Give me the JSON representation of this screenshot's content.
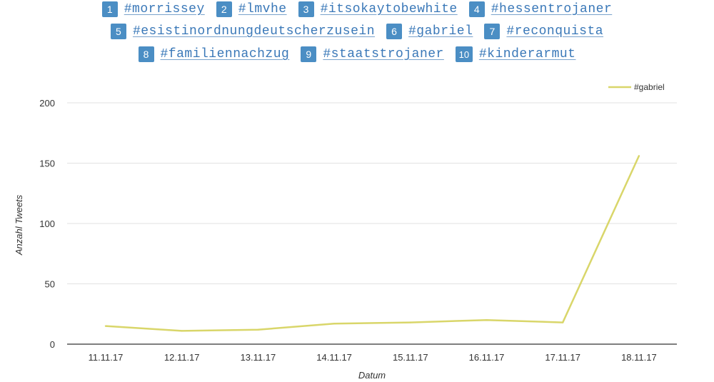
{
  "hashtags": [
    {
      "num": "1",
      "tag": "#morrissey"
    },
    {
      "num": "2",
      "tag": "#lmvhe"
    },
    {
      "num": "3",
      "tag": "#itsokaytobewhite"
    },
    {
      "num": "4",
      "tag": "#hessentrojaner"
    },
    {
      "num": "5",
      "tag": "#esistinordnungdeutscherzusein"
    },
    {
      "num": "6",
      "tag": "#gabriel"
    },
    {
      "num": "7",
      "tag": "#reconquista"
    },
    {
      "num": "8",
      "tag": "#familiennachzug"
    },
    {
      "num": "9",
      "tag": "#staatstrojaner"
    },
    {
      "num": "10",
      "tag": "#kinderarmut"
    }
  ],
  "colors": {
    "tag_badge": "#4b8ec4",
    "tag_link": "#3a78b8",
    "line": "#d9d66a",
    "grid": "#e2e2e2",
    "axis": "#333333"
  },
  "chart_data": {
    "type": "line",
    "title": "",
    "xlabel": "Datum",
    "ylabel": "Anzahl Tweets",
    "categories": [
      "11.11.17",
      "12.11.17",
      "13.11.17",
      "14.11.17",
      "15.11.17",
      "16.11.17",
      "17.11.17",
      "18.11.17"
    ],
    "series": [
      {
        "name": "#gabriel",
        "values": [
          15,
          11,
          12,
          17,
          18,
          20,
          18,
          156
        ]
      }
    ],
    "ylim": [
      0,
      200
    ],
    "yticks": [
      "0",
      "50",
      "100",
      "150",
      "200"
    ],
    "grid": true,
    "legend": "top-right"
  }
}
